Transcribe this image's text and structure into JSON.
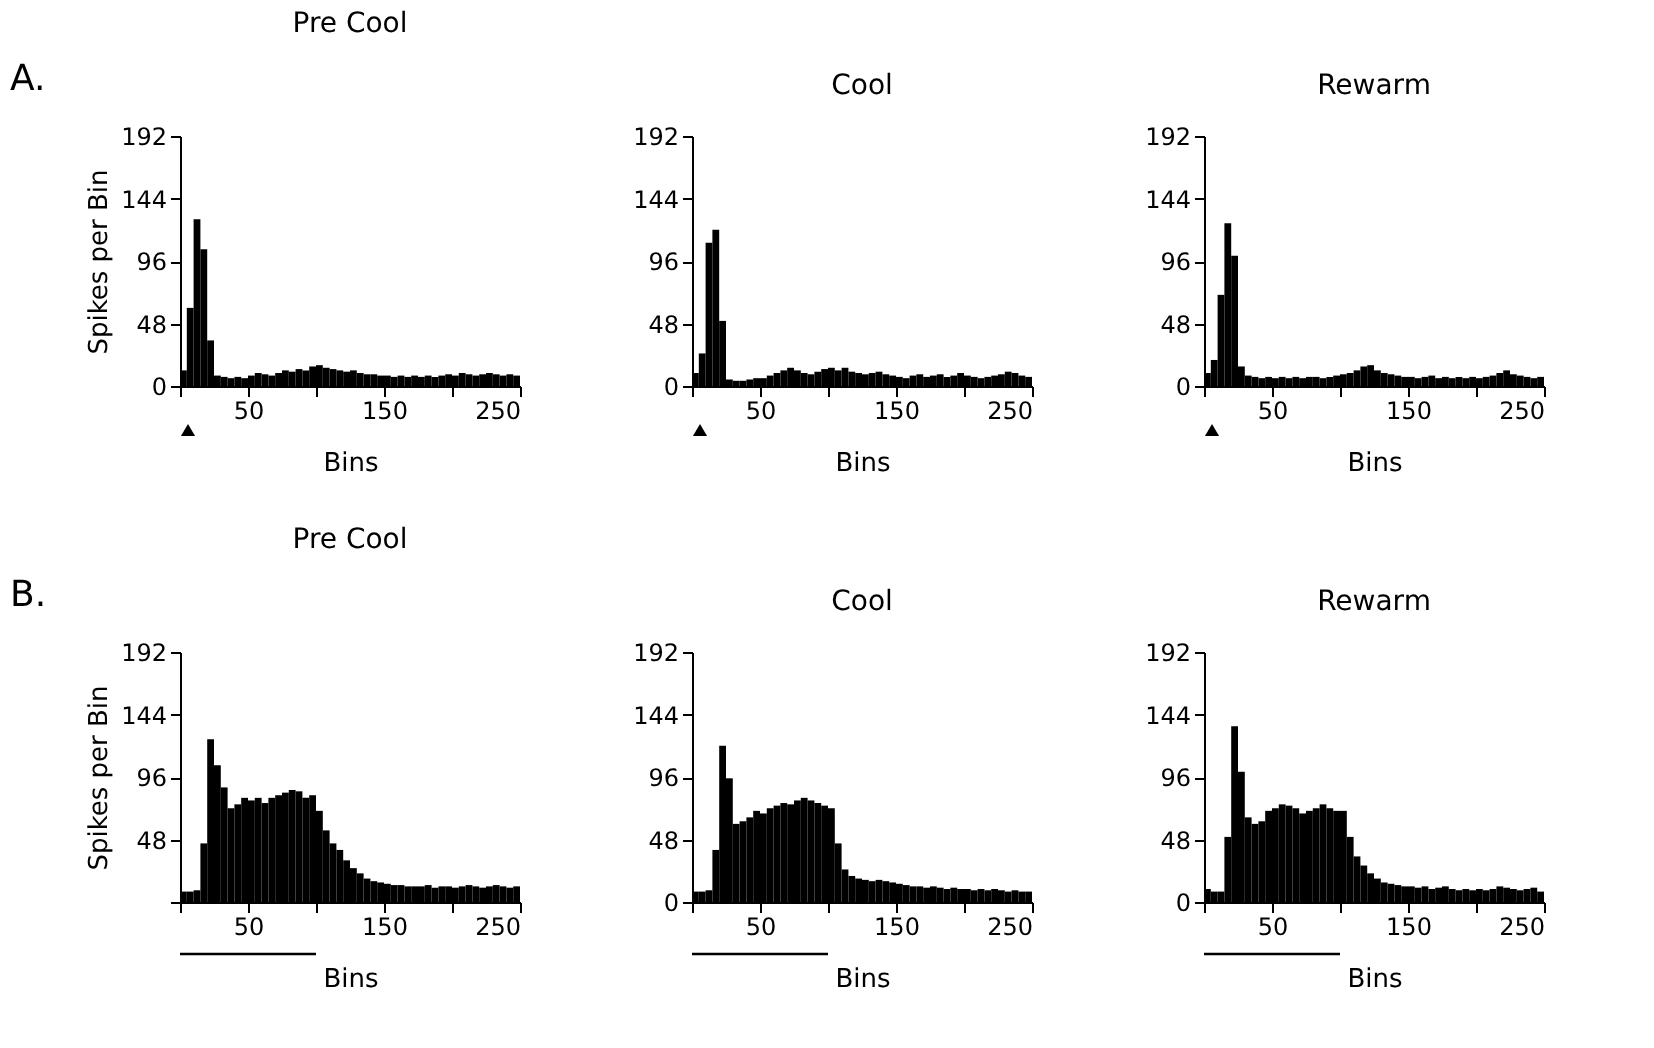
{
  "chart_data": [
    {
      "type": "histogram",
      "title": "Pre Cool",
      "xlabel": "Bins",
      "ylabel": "Spikes per Bin",
      "annotations": [
        "A."
      ],
      "color": "#000000",
      "grid": false,
      "bins": [
        0,
        5,
        10,
        15,
        20,
        25,
        30,
        35,
        40,
        45,
        50,
        55,
        60,
        65,
        70,
        75,
        80,
        85,
        90,
        95,
        100,
        105,
        110,
        115,
        120,
        125,
        130,
        135,
        140,
        145,
        150,
        155,
        160,
        165,
        170,
        175,
        180,
        185,
        190,
        195,
        200,
        205,
        210,
        215,
        220,
        225,
        230,
        235,
        240,
        245,
        250
      ],
      "values": [
        12,
        60,
        128,
        105,
        35,
        8,
        7,
        6,
        7,
        6,
        8,
        10,
        9,
        8,
        10,
        12,
        11,
        13,
        12,
        15,
        16,
        14,
        13,
        12,
        11,
        12,
        10,
        9,
        9,
        8,
        8,
        7,
        8,
        7,
        8,
        7,
        8,
        7,
        8,
        9,
        8,
        10,
        9,
        8,
        9,
        10,
        9,
        8,
        9,
        8
      ],
      "xlim": [
        0,
        250
      ],
      "ylim": [
        0,
        192
      ],
      "xticks": [
        {
          "value": 0,
          "label": null
        },
        50,
        {
          "value": 100,
          "label": null
        },
        150,
        {
          "value": 200,
          "label": null
        },
        250
      ],
      "yticks": [
        0,
        48,
        96,
        144,
        192
      ]
    },
    {
      "type": "histogram",
      "title": "Cool",
      "xlabel": "Bins",
      "color": "#000000",
      "grid": false,
      "bins": [
        0,
        5,
        10,
        15,
        20,
        25,
        30,
        35,
        40,
        45,
        50,
        55,
        60,
        65,
        70,
        75,
        80,
        85,
        90,
        95,
        100,
        105,
        110,
        115,
        120,
        125,
        130,
        135,
        140,
        145,
        150,
        155,
        160,
        165,
        170,
        175,
        180,
        185,
        190,
        195,
        200,
        205,
        210,
        215,
        220,
        225,
        230,
        235,
        240,
        245,
        250
      ],
      "values": [
        10,
        25,
        110,
        120,
        50,
        5,
        4,
        4,
        5,
        6,
        6,
        8,
        10,
        12,
        14,
        12,
        10,
        9,
        11,
        13,
        14,
        12,
        14,
        11,
        10,
        9,
        10,
        11,
        9,
        8,
        7,
        6,
        8,
        9,
        7,
        8,
        9,
        7,
        8,
        10,
        8,
        7,
        6,
        7,
        8,
        9,
        11,
        10,
        8,
        7
      ],
      "xlim": [
        0,
        250
      ],
      "ylim": [
        0,
        192
      ],
      "xticks": [
        {
          "value": 0,
          "label": null
        },
        50,
        {
          "value": 100,
          "label": null
        },
        150,
        {
          "value": 200,
          "label": null
        },
        250
      ],
      "yticks": [
        0,
        48,
        96,
        144,
        192
      ]
    },
    {
      "type": "histogram",
      "title": "Rewarm",
      "xlabel": "Bins",
      "color": "#000000",
      "grid": false,
      "bins": [
        0,
        5,
        10,
        15,
        20,
        25,
        30,
        35,
        40,
        45,
        50,
        55,
        60,
        65,
        70,
        75,
        80,
        85,
        90,
        95,
        100,
        105,
        110,
        115,
        120,
        125,
        130,
        135,
        140,
        145,
        150,
        155,
        160,
        165,
        170,
        175,
        180,
        185,
        190,
        195,
        200,
        205,
        210,
        215,
        220,
        225,
        230,
        235,
        240,
        245,
        250
      ],
      "values": [
        10,
        20,
        70,
        125,
        100,
        15,
        8,
        7,
        6,
        7,
        6,
        7,
        6,
        7,
        6,
        7,
        7,
        6,
        7,
        8,
        9,
        10,
        12,
        15,
        16,
        12,
        10,
        9,
        8,
        7,
        7,
        6,
        7,
        8,
        6,
        7,
        6,
        7,
        6,
        7,
        6,
        7,
        8,
        10,
        12,
        9,
        8,
        7,
        6,
        7
      ],
      "xlim": [
        0,
        250
      ],
      "ylim": [
        0,
        192
      ],
      "xticks": [
        {
          "value": 0,
          "label": null
        },
        50,
        {
          "value": 100,
          "label": null
        },
        150,
        {
          "value": 200,
          "label": null
        },
        250
      ],
      "yticks": [
        0,
        48,
        96,
        144,
        192
      ]
    },
    {
      "type": "histogram",
      "title": "Pre Cool",
      "xlabel": "Bins",
      "ylabel": "Spikes per Bin",
      "annotations": [
        "B."
      ],
      "color": "#000000",
      "grid": false,
      "bins": [
        0,
        5,
        10,
        15,
        20,
        25,
        30,
        35,
        40,
        45,
        50,
        55,
        60,
        65,
        70,
        75,
        80,
        85,
        90,
        95,
        100,
        105,
        110,
        115,
        120,
        125,
        130,
        135,
        140,
        145,
        150,
        155,
        160,
        165,
        170,
        175,
        180,
        185,
        190,
        195,
        200,
        205,
        210,
        215,
        220,
        225,
        230,
        235,
        240,
        245,
        250
      ],
      "values": [
        8,
        8,
        9,
        45,
        125,
        105,
        88,
        72,
        75,
        80,
        78,
        80,
        76,
        80,
        82,
        84,
        86,
        85,
        80,
        82,
        70,
        55,
        45,
        40,
        32,
        26,
        22,
        18,
        16,
        15,
        14,
        13,
        13,
        12,
        12,
        12,
        13,
        11,
        12,
        12,
        11,
        12,
        13,
        12,
        11,
        12,
        13,
        12,
        11,
        12
      ],
      "xlim": [
        0,
        250
      ],
      "ylim": [
        0,
        192
      ],
      "xticks": [
        {
          "value": 0,
          "label": null
        },
        50,
        {
          "value": 100,
          "label": null
        },
        150,
        {
          "value": 200,
          "label": null
        },
        250
      ],
      "yticks": [
        {
          "value": 0,
          "label": null
        },
        48,
        96,
        144,
        192
      ]
    },
    {
      "type": "histogram",
      "title": "Cool",
      "xlabel": "Bins",
      "color": "#000000",
      "grid": false,
      "bins": [
        0,
        5,
        10,
        15,
        20,
        25,
        30,
        35,
        40,
        45,
        50,
        55,
        60,
        65,
        70,
        75,
        80,
        85,
        90,
        95,
        100,
        105,
        110,
        115,
        120,
        125,
        130,
        135,
        140,
        145,
        150,
        155,
        160,
        165,
        170,
        175,
        180,
        185,
        190,
        195,
        200,
        205,
        210,
        215,
        220,
        225,
        230,
        235,
        240,
        245,
        250
      ],
      "values": [
        8,
        8,
        9,
        40,
        120,
        95,
        60,
        62,
        65,
        70,
        68,
        72,
        74,
        76,
        75,
        78,
        80,
        78,
        76,
        74,
        72,
        45,
        25,
        20,
        18,
        17,
        16,
        17,
        16,
        15,
        14,
        13,
        12,
        12,
        11,
        12,
        11,
        10,
        11,
        10,
        10,
        9,
        10,
        9,
        10,
        9,
        8,
        9,
        8,
        8
      ],
      "xlim": [
        0,
        250
      ],
      "ylim": [
        0,
        192
      ],
      "xticks": [
        {
          "value": 0,
          "label": null
        },
        50,
        {
          "value": 100,
          "label": null
        },
        150,
        {
          "value": 200,
          "label": null
        },
        250
      ],
      "yticks": [
        0,
        48,
        96,
        144,
        192
      ]
    },
    {
      "type": "histogram",
      "title": "Rewarm",
      "xlabel": "Bins",
      "color": "#000000",
      "grid": false,
      "bins": [
        0,
        5,
        10,
        15,
        20,
        25,
        30,
        35,
        40,
        45,
        50,
        55,
        60,
        65,
        70,
        75,
        80,
        85,
        90,
        95,
        100,
        105,
        110,
        115,
        120,
        125,
        130,
        135,
        140,
        145,
        150,
        155,
        160,
        165,
        170,
        175,
        180,
        185,
        190,
        195,
        200,
        205,
        210,
        215,
        220,
        225,
        230,
        235,
        240,
        245,
        250
      ],
      "values": [
        10,
        8,
        8,
        50,
        135,
        100,
        65,
        60,
        62,
        70,
        72,
        75,
        74,
        72,
        68,
        70,
        72,
        75,
        72,
        70,
        70,
        50,
        35,
        28,
        22,
        18,
        15,
        14,
        13,
        12,
        12,
        11,
        12,
        10,
        11,
        12,
        10,
        9,
        10,
        9,
        10,
        9,
        10,
        12,
        11,
        10,
        9,
        10,
        11,
        8
      ],
      "xlim": [
        0,
        250
      ],
      "ylim": [
        0,
        192
      ],
      "xticks": [
        {
          "value": 0,
          "label": null
        },
        50,
        {
          "value": 100,
          "label": null
        },
        150,
        {
          "value": 200,
          "label": null
        },
        250
      ],
      "yticks": [
        0,
        48,
        96,
        144,
        192
      ]
    }
  ]
}
